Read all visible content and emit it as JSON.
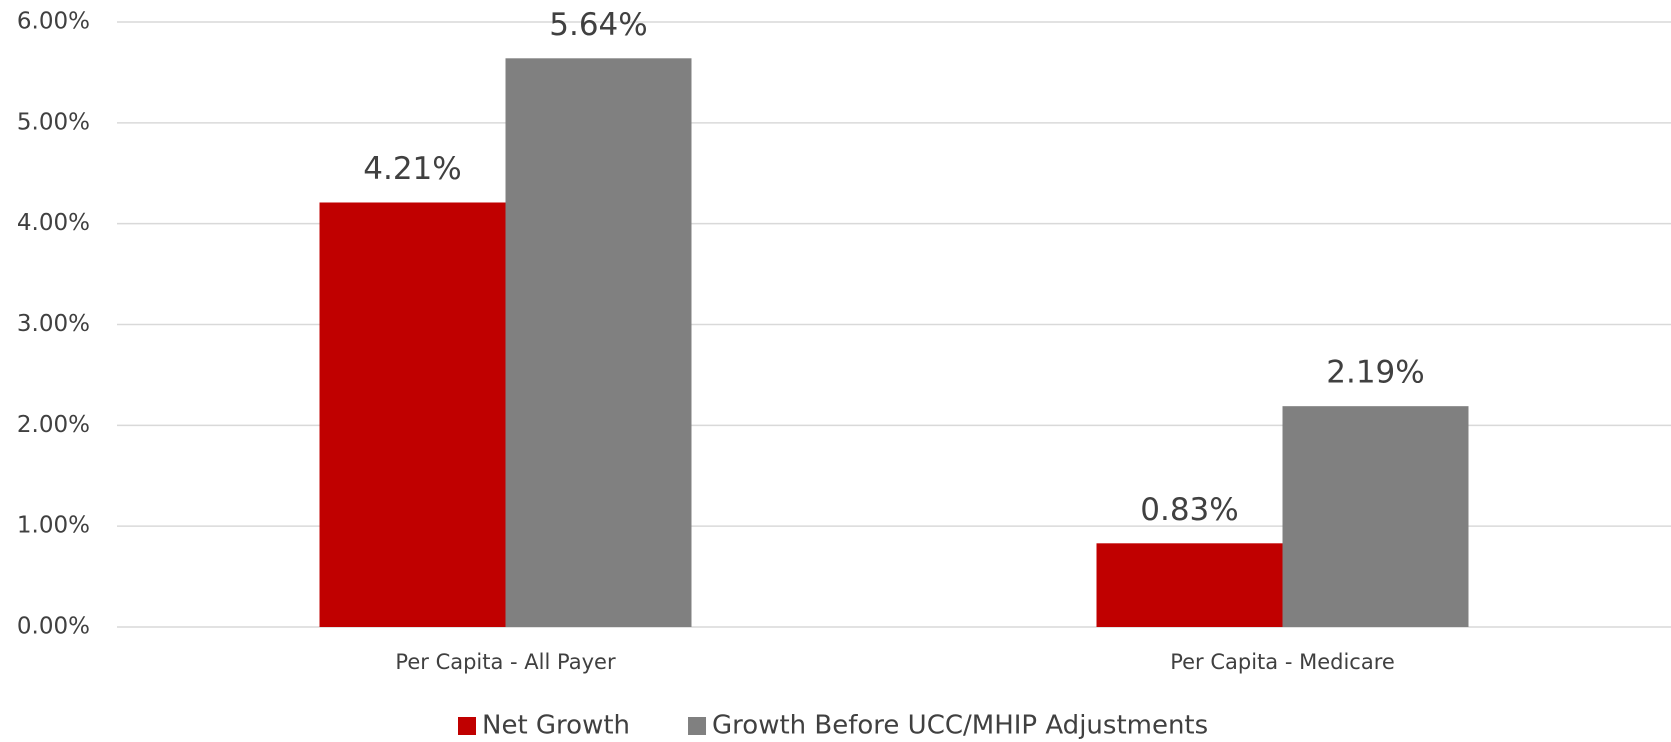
{
  "chart_data": {
    "type": "bar",
    "categories": [
      "Per Capita  - All Payer",
      "Per Capita - Medicare"
    ],
    "series": [
      {
        "name": "Net Growth",
        "color": "#c00000",
        "values": [
          4.21,
          0.83
        ],
        "value_labels": [
          "4.21%",
          "0.83%"
        ]
      },
      {
        "name": "Growth Before UCC/MHIP Adjustments",
        "color": "#808080",
        "values": [
          5.64,
          2.19
        ],
        "value_labels": [
          "5.64%",
          "2.19%"
        ]
      }
    ],
    "ylim": [
      0,
      6
    ],
    "yticks": [
      {
        "value": 0,
        "label": "0.00%"
      },
      {
        "value": 1,
        "label": "1.00%"
      },
      {
        "value": 2,
        "label": "2.00%"
      },
      {
        "value": 3,
        "label": "3.00%"
      },
      {
        "value": 4,
        "label": "4.00%"
      },
      {
        "value": 5,
        "label": "5.00%"
      },
      {
        "value": 6,
        "label": "6.00%"
      }
    ],
    "grid": true,
    "legend": "bottom"
  }
}
